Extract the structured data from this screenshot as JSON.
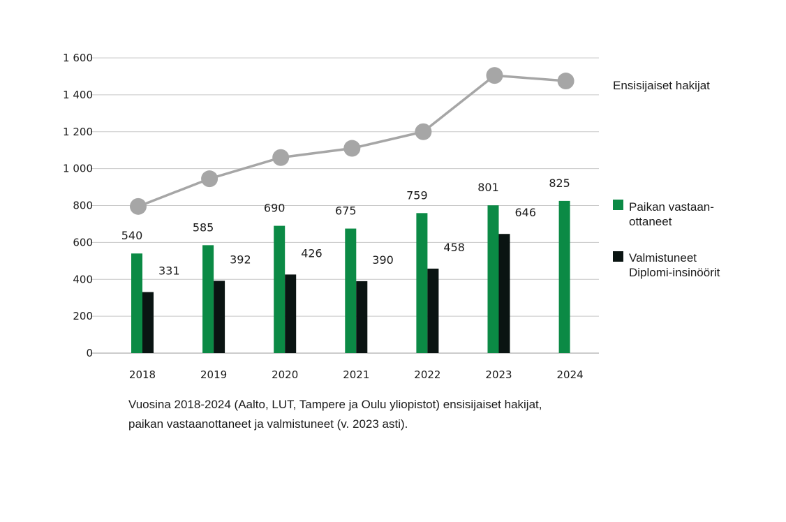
{
  "chart_data": {
    "type": "bar",
    "categories": [
      "2018",
      "2019",
      "2020",
      "2021",
      "2022",
      "2023",
      "2024"
    ],
    "series": [
      {
        "name": "Paikan vastaan-ottaneet",
        "legend_lines": [
          "Paikan vastaan-",
          "ottaneet"
        ],
        "kind": "bar",
        "color": "#0b8a45",
        "values": [
          540,
          585,
          690,
          675,
          759,
          801,
          825
        ]
      },
      {
        "name": "Valmistuneet Diplomi-insinöörit",
        "legend_lines": [
          "Valmistuneet",
          "Diplomi-insinöörit"
        ],
        "kind": "bar",
        "color": "#0a1412",
        "values": [
          331,
          392,
          426,
          390,
          458,
          646,
          null
        ]
      },
      {
        "name": "Ensisijaiset hakijat",
        "legend_lines": [
          "Ensisijaiset hakijat"
        ],
        "kind": "line",
        "color": "#a6a6a6",
        "values": [
          795,
          945,
          1060,
          1110,
          1200,
          1505,
          1475
        ]
      }
    ],
    "y_ticks": [
      "0",
      "200",
      "400",
      "600",
      "800",
      "1 000",
      "1 200",
      "1 400",
      "1 600"
    ],
    "ylim": [
      0,
      1600
    ],
    "grid": true,
    "legend_placement": "right"
  },
  "caption": {
    "line1": "Vuosina 2018-2024 (Aalto, LUT, Tampere ja Oulu yliopistot) ensisijaiset hakijat,",
    "line2": "paikan vastaanottaneet ja valmistuneet  (v. 2023 asti)."
  }
}
